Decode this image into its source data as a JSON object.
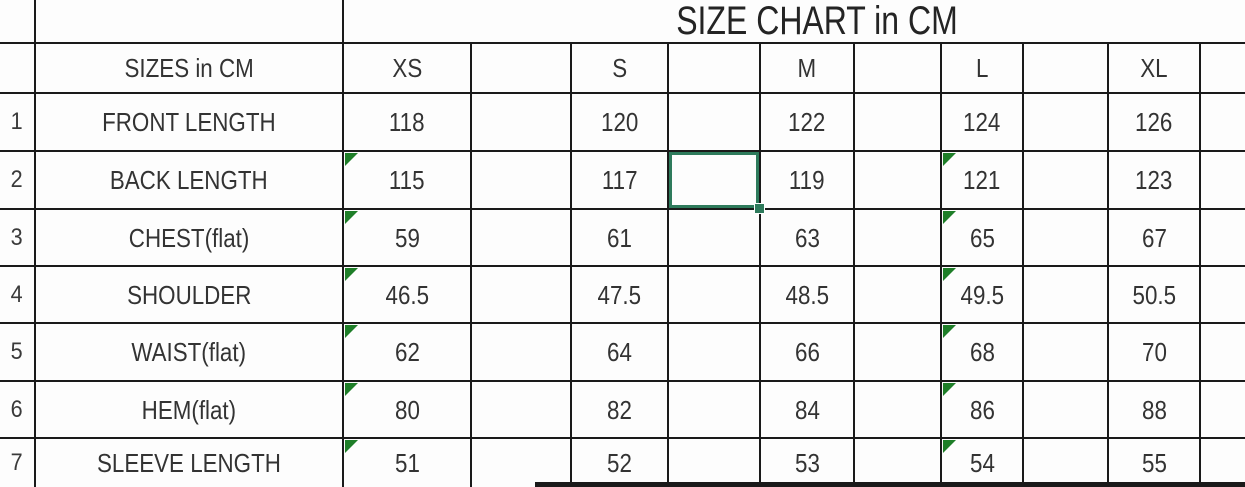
{
  "title": "SIZE CHART in CM",
  "header": {
    "corner": "SIZES in CM",
    "sizes": [
      "XS",
      "S",
      "M",
      "L",
      "XL"
    ]
  },
  "rows": [
    {
      "num": "1",
      "label": "FRONT LENGTH",
      "values": [
        "118",
        "120",
        "122",
        "124",
        "126"
      ]
    },
    {
      "num": "2",
      "label": "BACK LENGTH",
      "values": [
        "115",
        "117",
        "119",
        "121",
        "123"
      ]
    },
    {
      "num": "3",
      "label": "CHEST(flat)",
      "values": [
        "59",
        "61",
        "63",
        "65",
        "67"
      ]
    },
    {
      "num": "4",
      "label": "SHOULDER",
      "values": [
        "46.5",
        "47.5",
        "48.5",
        "49.5",
        "50.5"
      ]
    },
    {
      "num": "5",
      "label": "WAIST(flat)",
      "values": [
        "62",
        "64",
        "66",
        "68",
        "70"
      ]
    },
    {
      "num": "6",
      "label": "HEM(flat)",
      "values": [
        "80",
        "82",
        "84",
        "86",
        "88"
      ]
    },
    {
      "num": "7",
      "label": "SLEEVE LENGTH",
      "values": [
        "51",
        "52",
        "53",
        "54",
        "55"
      ]
    }
  ],
  "error_indicators": {
    "icon": "error-triangle-icon",
    "rows": [
      "2",
      "3",
      "4",
      "5",
      "6",
      "7"
    ],
    "columns": [
      "XS",
      "L"
    ],
    "color": "#1e7e28"
  },
  "selection": {
    "location": "empty cell between S and M, BACK LENGTH row",
    "border_color": "#2e7b5c",
    "has_fill_handle": true
  },
  "colors": {
    "gridline": "#1a1a1a",
    "text": "#333333",
    "background": "#ffffff"
  }
}
